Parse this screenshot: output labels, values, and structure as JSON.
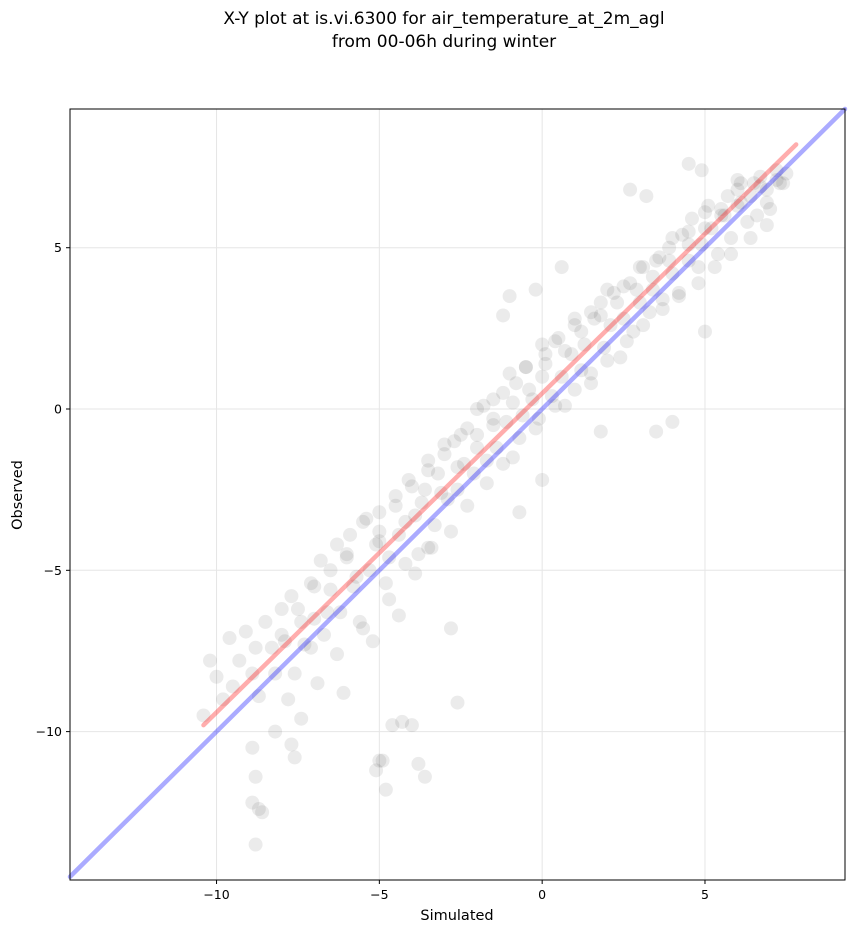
{
  "chart_data": {
    "type": "scatter",
    "title_lines": [
      "X-Y plot at is.vi.6300 for air_temperature_at_2m_agl",
      "from 00-06h during winter"
    ],
    "xlabel": "Simulated",
    "ylabel": "Observed",
    "xlim": [
      -14.5,
      9.3
    ],
    "ylim": [
      -14.6,
      9.3
    ],
    "xticks": [
      -10,
      -5,
      0,
      5
    ],
    "yticks": [
      -10,
      -5,
      0,
      5
    ],
    "xtick_labels": [
      "−10",
      "−5",
      "0",
      "5"
    ],
    "ytick_labels": [
      "−10",
      "−5",
      "0",
      "5"
    ],
    "grid": true,
    "point_color": "#000000",
    "point_opacity": 0.08,
    "series": [
      {
        "role": "points",
        "x": [
          -10.4,
          -10.2,
          -10.0,
          -9.8,
          -9.6,
          -9.5,
          -9.3,
          -9.1,
          -8.9,
          -8.8,
          -8.7,
          -8.5,
          -8.3,
          -8.2,
          -8.0,
          -7.9,
          -7.7,
          -7.6,
          -7.4,
          -7.3,
          -7.1,
          -7.0,
          -6.8,
          -6.7,
          -6.5,
          -6.3,
          -6.2,
          -6.0,
          -5.9,
          -5.7,
          -5.6,
          -5.4,
          -5.3,
          -5.1,
          -5.0,
          -4.8,
          -4.7,
          -4.5,
          -4.4,
          -4.2,
          -4.1,
          -3.9,
          -3.8,
          -3.6,
          -3.5,
          -3.3,
          -3.2,
          -3.0,
          -2.9,
          -2.7,
          -2.6,
          -2.4,
          -2.3,
          -2.1,
          -2.0,
          -1.8,
          -1.7,
          -1.5,
          -1.4,
          -1.2,
          -1.1,
          -0.9,
          -0.8,
          -0.6,
          -0.5,
          -0.3,
          -0.2,
          0.0,
          0.1,
          0.3,
          0.4,
          0.6,
          0.7,
          0.9,
          1.0,
          1.2,
          1.3,
          1.5,
          1.6,
          1.8,
          1.9,
          2.1,
          2.2,
          2.4,
          2.5,
          2.7,
          2.8,
          3.0,
          3.1,
          3.3,
          3.4,
          3.6,
          3.7,
          3.9,
          4.0,
          4.2,
          4.3,
          4.5,
          4.6,
          4.8,
          4.9,
          5.1,
          5.2,
          5.4,
          5.5,
          5.7,
          5.8,
          6.0,
          6.1,
          6.3,
          6.4,
          6.6,
          6.7,
          6.9,
          7.0,
          7.2,
          7.4,
          7.5,
          -8.9,
          -8.8,
          -8.6,
          -8.2,
          -7.8,
          -7.4,
          -7.1,
          -6.9,
          -6.6,
          -6.3,
          -6.1,
          -5.8,
          -5.5,
          -5.2,
          -5.0,
          -4.7,
          -4.4,
          -4.2,
          -3.9,
          -3.7,
          -3.4,
          -3.1,
          -2.8,
          -2.6,
          -2.3,
          -2.0,
          -1.7,
          -1.5,
          -1.2,
          -0.9,
          -0.7,
          -0.4,
          -0.1,
          0.1,
          0.4,
          0.7,
          1.0,
          1.2,
          1.5,
          1.8,
          2.0,
          2.3,
          2.6,
          2.9,
          3.1,
          3.4,
          3.7,
          3.9,
          4.2,
          4.5,
          4.8,
          5.0,
          5.3,
          5.6,
          5.8,
          6.1,
          6.4,
          6.7,
          6.9,
          7.2,
          -8.0,
          -7.5,
          -7.0,
          -6.5,
          -6.0,
          -5.5,
          -5.0,
          -4.5,
          -4.0,
          -3.5,
          -3.0,
          -2.5,
          -2.0,
          -1.5,
          -1.0,
          -0.5,
          0.0,
          0.5,
          1.0,
          1.5,
          2.0,
          2.5,
          3.0,
          3.5,
          4.0,
          4.5,
          5.0,
          5.5,
          6.0,
          6.5,
          -5.1,
          -5.0,
          -4.8,
          -4.9,
          -4.6,
          -4.3,
          -3.8,
          -3.6,
          -8.9,
          -8.8,
          -8.7,
          -7.7,
          -7.6,
          -4.0,
          -2.6,
          -2.8,
          -3.5,
          -0.7,
          0.0,
          5.0,
          4.0,
          3.5,
          1.8,
          -1.2,
          -1.0,
          0.6,
          -0.2,
          2.7,
          3.2,
          6.9,
          7.3,
          4.5,
          4.9,
          6.0
        ],
        "y": [
          -9.5,
          -7.8,
          -8.3,
          -9.0,
          -7.1,
          -8.6,
          -7.8,
          -6.9,
          -8.2,
          -7.4,
          -8.9,
          -6.6,
          -7.4,
          -8.2,
          -6.2,
          -7.2,
          -5.8,
          -8.2,
          -6.6,
          -7.3,
          -5.4,
          -6.5,
          -4.7,
          -7.0,
          -5.6,
          -4.2,
          -6.3,
          -4.6,
          -3.9,
          -5.2,
          -6.6,
          -3.4,
          -5.0,
          -4.2,
          -3.2,
          -5.4,
          -4.6,
          -2.7,
          -3.9,
          -4.8,
          -2.2,
          -3.3,
          -4.5,
          -2.5,
          -1.6,
          -3.6,
          -2.0,
          -1.4,
          -2.8,
          -1.0,
          -2.5,
          -1.7,
          -0.6,
          -2.0,
          -0.8,
          0.1,
          -1.6,
          -0.3,
          -1.2,
          0.5,
          -0.4,
          -1.5,
          0.8,
          -0.2,
          1.3,
          0.3,
          -0.6,
          1.0,
          1.7,
          0.4,
          2.1,
          1.0,
          0.1,
          1.7,
          2.6,
          1.2,
          2.0,
          0.8,
          2.8,
          3.3,
          1.9,
          2.6,
          3.6,
          1.6,
          2.8,
          3.9,
          2.4,
          3.3,
          4.4,
          3.0,
          3.7,
          4.7,
          3.4,
          5.0,
          4.2,
          3.6,
          5.4,
          4.6,
          5.9,
          4.4,
          5.1,
          6.3,
          5.6,
          4.8,
          6.0,
          6.6,
          5.3,
          6.3,
          7.0,
          5.8,
          6.6,
          6.0,
          7.2,
          6.8,
          6.2,
          7.4,
          7.0,
          7.3,
          -10.5,
          -11.4,
          -12.5,
          -10.0,
          -9.0,
          -9.6,
          -7.4,
          -8.5,
          -6.3,
          -7.6,
          -8.8,
          -5.5,
          -6.8,
          -7.2,
          -4.1,
          -5.9,
          -6.4,
          -3.5,
          -5.1,
          -2.9,
          -4.3,
          -2.6,
          -3.8,
          -1.8,
          -3.0,
          -1.2,
          -2.3,
          -0.5,
          -1.7,
          0.2,
          -0.9,
          0.6,
          -0.3,
          1.4,
          0.1,
          1.8,
          0.6,
          2.4,
          1.1,
          2.9,
          1.5,
          3.3,
          2.1,
          3.7,
          2.6,
          4.1,
          3.1,
          4.6,
          3.5,
          5.1,
          3.9,
          5.6,
          4.4,
          6.0,
          4.8,
          6.4,
          5.3,
          6.9,
          5.7,
          7.1,
          -7.0,
          -6.2,
          -5.5,
          -5.0,
          -4.5,
          -3.5,
          -3.8,
          -3.0,
          -2.4,
          -1.9,
          -1.1,
          -0.8,
          0.0,
          0.3,
          1.1,
          1.3,
          2.0,
          2.2,
          2.8,
          3.0,
          3.7,
          3.8,
          4.4,
          4.6,
          5.3,
          5.5,
          6.1,
          6.2,
          6.8,
          7.0,
          -11.2,
          -10.9,
          -11.8,
          -10.9,
          -9.8,
          -9.7,
          -11.0,
          -11.4,
          -12.2,
          -13.5,
          -12.4,
          -10.4,
          -10.8,
          -9.8,
          -9.1,
          -6.8,
          -4.3,
          -3.2,
          -2.2,
          2.4,
          -0.4,
          -0.7,
          -0.7,
          2.9,
          3.5,
          4.4,
          3.7,
          6.8,
          6.6,
          6.4,
          7.0,
          7.6,
          7.4,
          7.1
        ]
      },
      {
        "role": "line",
        "color": "#ff0000",
        "opacity": 0.32,
        "x": [
          -10.4,
          7.8
        ],
        "y": [
          -9.8,
          8.2
        ]
      },
      {
        "role": "line",
        "color": "#0000ff",
        "opacity": 0.33,
        "x": [
          -14.5,
          9.3
        ],
        "y": [
          -14.5,
          9.3
        ]
      }
    ]
  }
}
